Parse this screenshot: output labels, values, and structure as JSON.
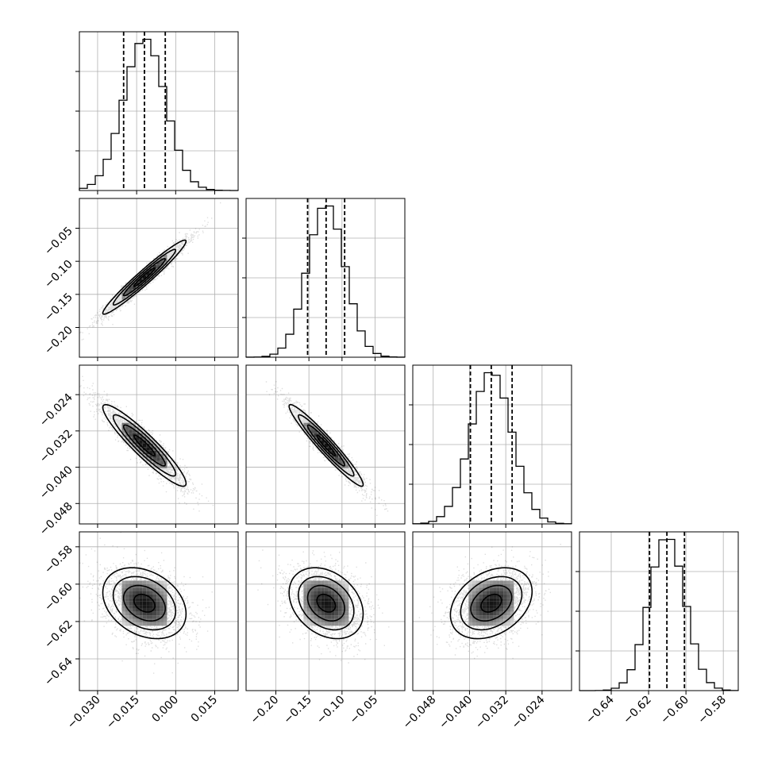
{
  "chart_data": {
    "type": "corner",
    "title": "",
    "parameters": [
      {
        "label": "",
        "range": [
          -0.037,
          0.024
        ],
        "ticks": [
          -0.03,
          -0.015,
          0.0,
          0.015
        ],
        "tick_labels": [
          "−0.030",
          "−0.015",
          "0.000",
          "0.015"
        ],
        "mean": -0.012,
        "sd": 0.008,
        "quantiles": [
          -0.02,
          -0.012,
          -0.004
        ]
      },
      {
        "label": "",
        "range": [
          -0.245,
          -0.005
        ],
        "ticks": [
          -0.2,
          -0.15,
          -0.1,
          -0.05
        ],
        "tick_labels": [
          "−0.20",
          "−0.15",
          "−0.10",
          "−0.05"
        ],
        "mean": -0.124,
        "sd": 0.028,
        "quantiles": [
          -0.152,
          -0.124,
          -0.096
        ]
      },
      {
        "label": "",
        "range": [
          -0.0525,
          -0.0175
        ],
        "ticks": [
          -0.048,
          -0.04,
          -0.032,
          -0.024
        ],
        "tick_labels": [
          "−0.048",
          "−0.040",
          "−0.032",
          "−0.024"
        ],
        "mean": -0.0352,
        "sd": 0.0045,
        "quantiles": [
          -0.0398,
          -0.0352,
          -0.0306
        ]
      },
      {
        "label": "",
        "range": [
          -0.657,
          -0.572
        ],
        "ticks": [
          -0.64,
          -0.62,
          -0.6,
          -0.58
        ],
        "tick_labels": [
          "−0.64",
          "−0.62",
          "−0.60",
          "−0.58"
        ],
        "mean": -0.6102,
        "sd": 0.0095,
        "quantiles": [
          -0.6195,
          -0.6102,
          -0.6008
        ]
      }
    ],
    "correlations": [
      [
        1.0,
        0.97,
        -0.93,
        -0.3
      ],
      [
        0.97,
        1.0,
        -0.96,
        -0.3
      ],
      [
        -0.93,
        -0.96,
        1.0,
        0.33
      ],
      [
        -0.3,
        -0.3,
        0.33,
        1.0
      ]
    ],
    "histogram_bins": 20,
    "contour_levels_sigma": [
      0.5,
      1.0,
      1.5,
      2.0
    ],
    "grid": true,
    "colors": {
      "line": "#000000",
      "grid": "#b0b0b0",
      "points": "#000000"
    }
  }
}
